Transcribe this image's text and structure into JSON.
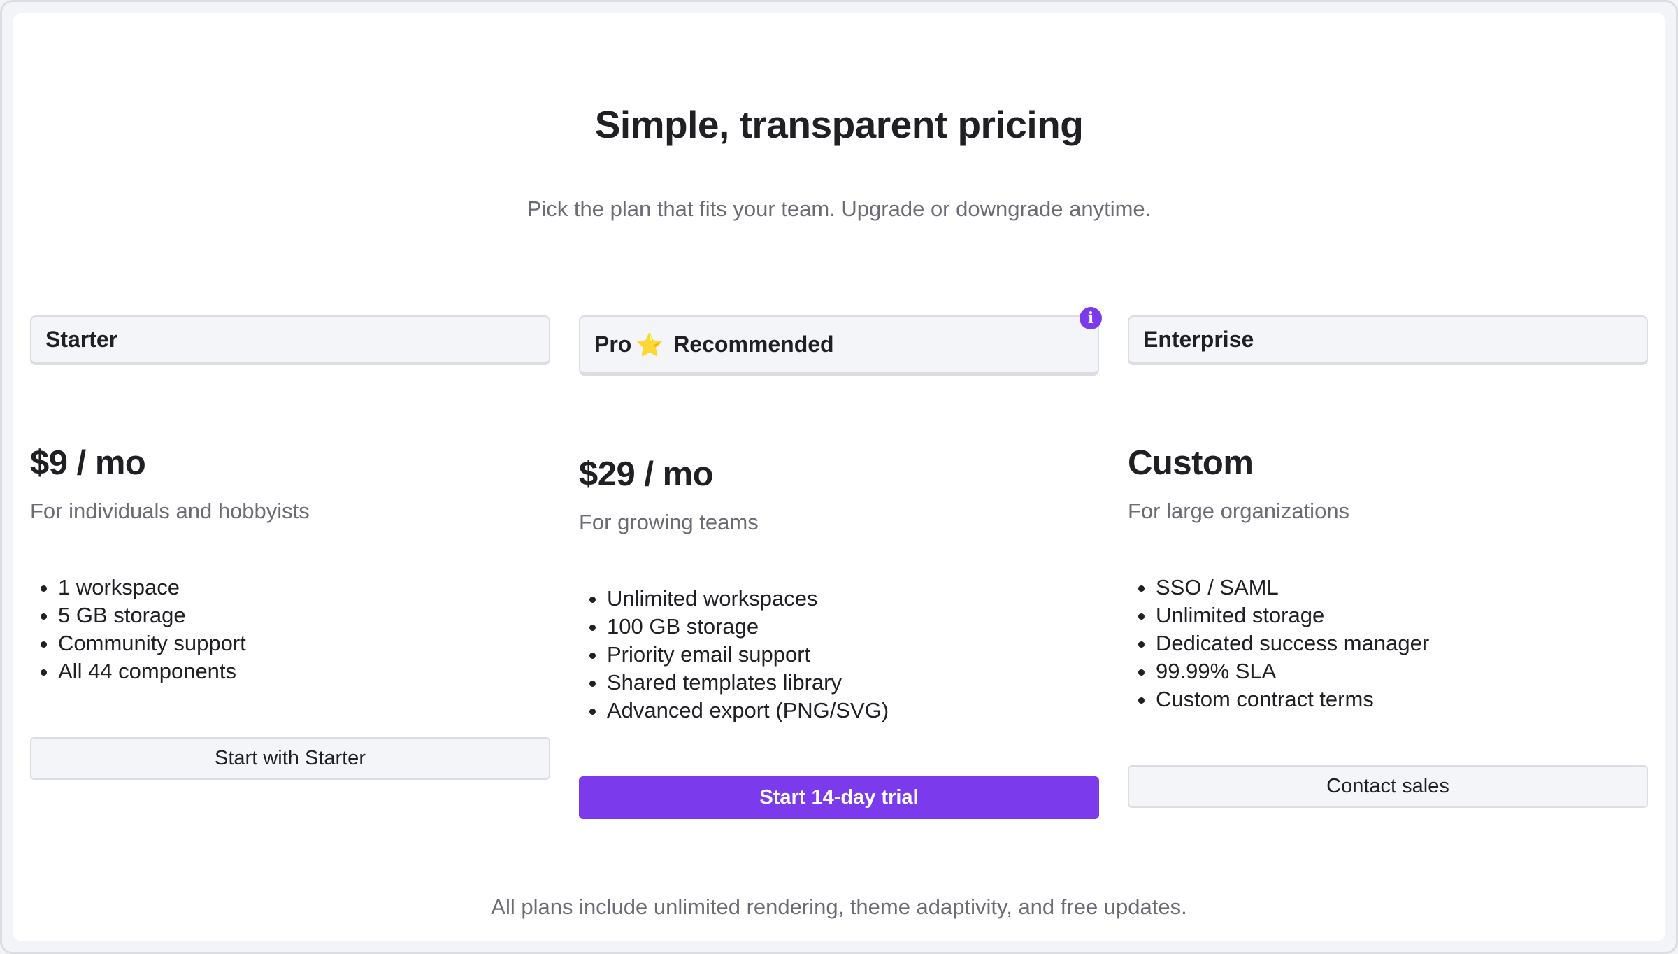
{
  "header": {
    "title": "Simple, transparent pricing",
    "subtitle": "Pick the plan that fits your team. Upgrade or downgrade anytime."
  },
  "accent_color": "#7c3aed",
  "plans": [
    {
      "name": "Starter",
      "price": "$9 / mo",
      "description": "For individuals and hobbyists",
      "features": [
        "1 workspace",
        "5 GB storage",
        "Community support",
        "All 44 components"
      ],
      "cta": "Start with Starter"
    },
    {
      "name": "Pro",
      "badge_icon": "star-icon",
      "star": "⭐",
      "tag": "Recommended",
      "info_badge": "i",
      "price": "$29 / mo",
      "description": "For growing teams",
      "features": [
        "Unlimited workspaces",
        "100 GB storage",
        "Priority email support",
        "Shared templates library",
        "Advanced export (PNG/SVG)"
      ],
      "cta": "Start 14-day trial"
    },
    {
      "name": "Enterprise",
      "price": "Custom",
      "description": "For large organizations",
      "features": [
        "SSO / SAML",
        "Unlimited storage",
        "Dedicated success manager",
        "99.99% SLA",
        "Custom contract terms"
      ],
      "cta": "Contact sales"
    }
  ],
  "footer": "All plans include unlimited rendering, theme adaptivity, and free updates."
}
